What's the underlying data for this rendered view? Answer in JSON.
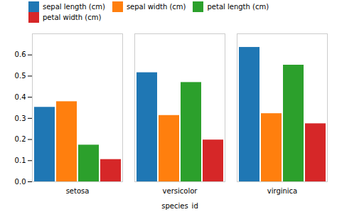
{
  "chart_data": {
    "type": "bar",
    "xlabel": "species_id",
    "categories": [
      "setosa",
      "versicolor",
      "virginica"
    ],
    "series": [
      {
        "name": "sepal length (cm)",
        "color": "#1f77b4",
        "values": [
          0.3525,
          0.5162,
          0.6359
        ]
      },
      {
        "name": "sepal width (cm)",
        "color": "#ff7f0e",
        "values": [
          0.3791,
          0.3138,
          0.3225
        ]
      },
      {
        "name": "petal length (cm)",
        "color": "#2ca02c",
        "values": [
          0.1737,
          0.4699,
          0.5519
        ]
      },
      {
        "name": "petal width (cm)",
        "color": "#d62728",
        "values": [
          0.1054,
          0.1978,
          0.2747
        ]
      }
    ],
    "ylim": [
      0.0,
      0.7
    ],
    "yticks": [
      {
        "value": 0,
        "label": "0.0"
      },
      0.1,
      0.2,
      0.3,
      0.4,
      0.5,
      0.6
    ],
    "grid": false,
    "legend": "upper left"
  }
}
